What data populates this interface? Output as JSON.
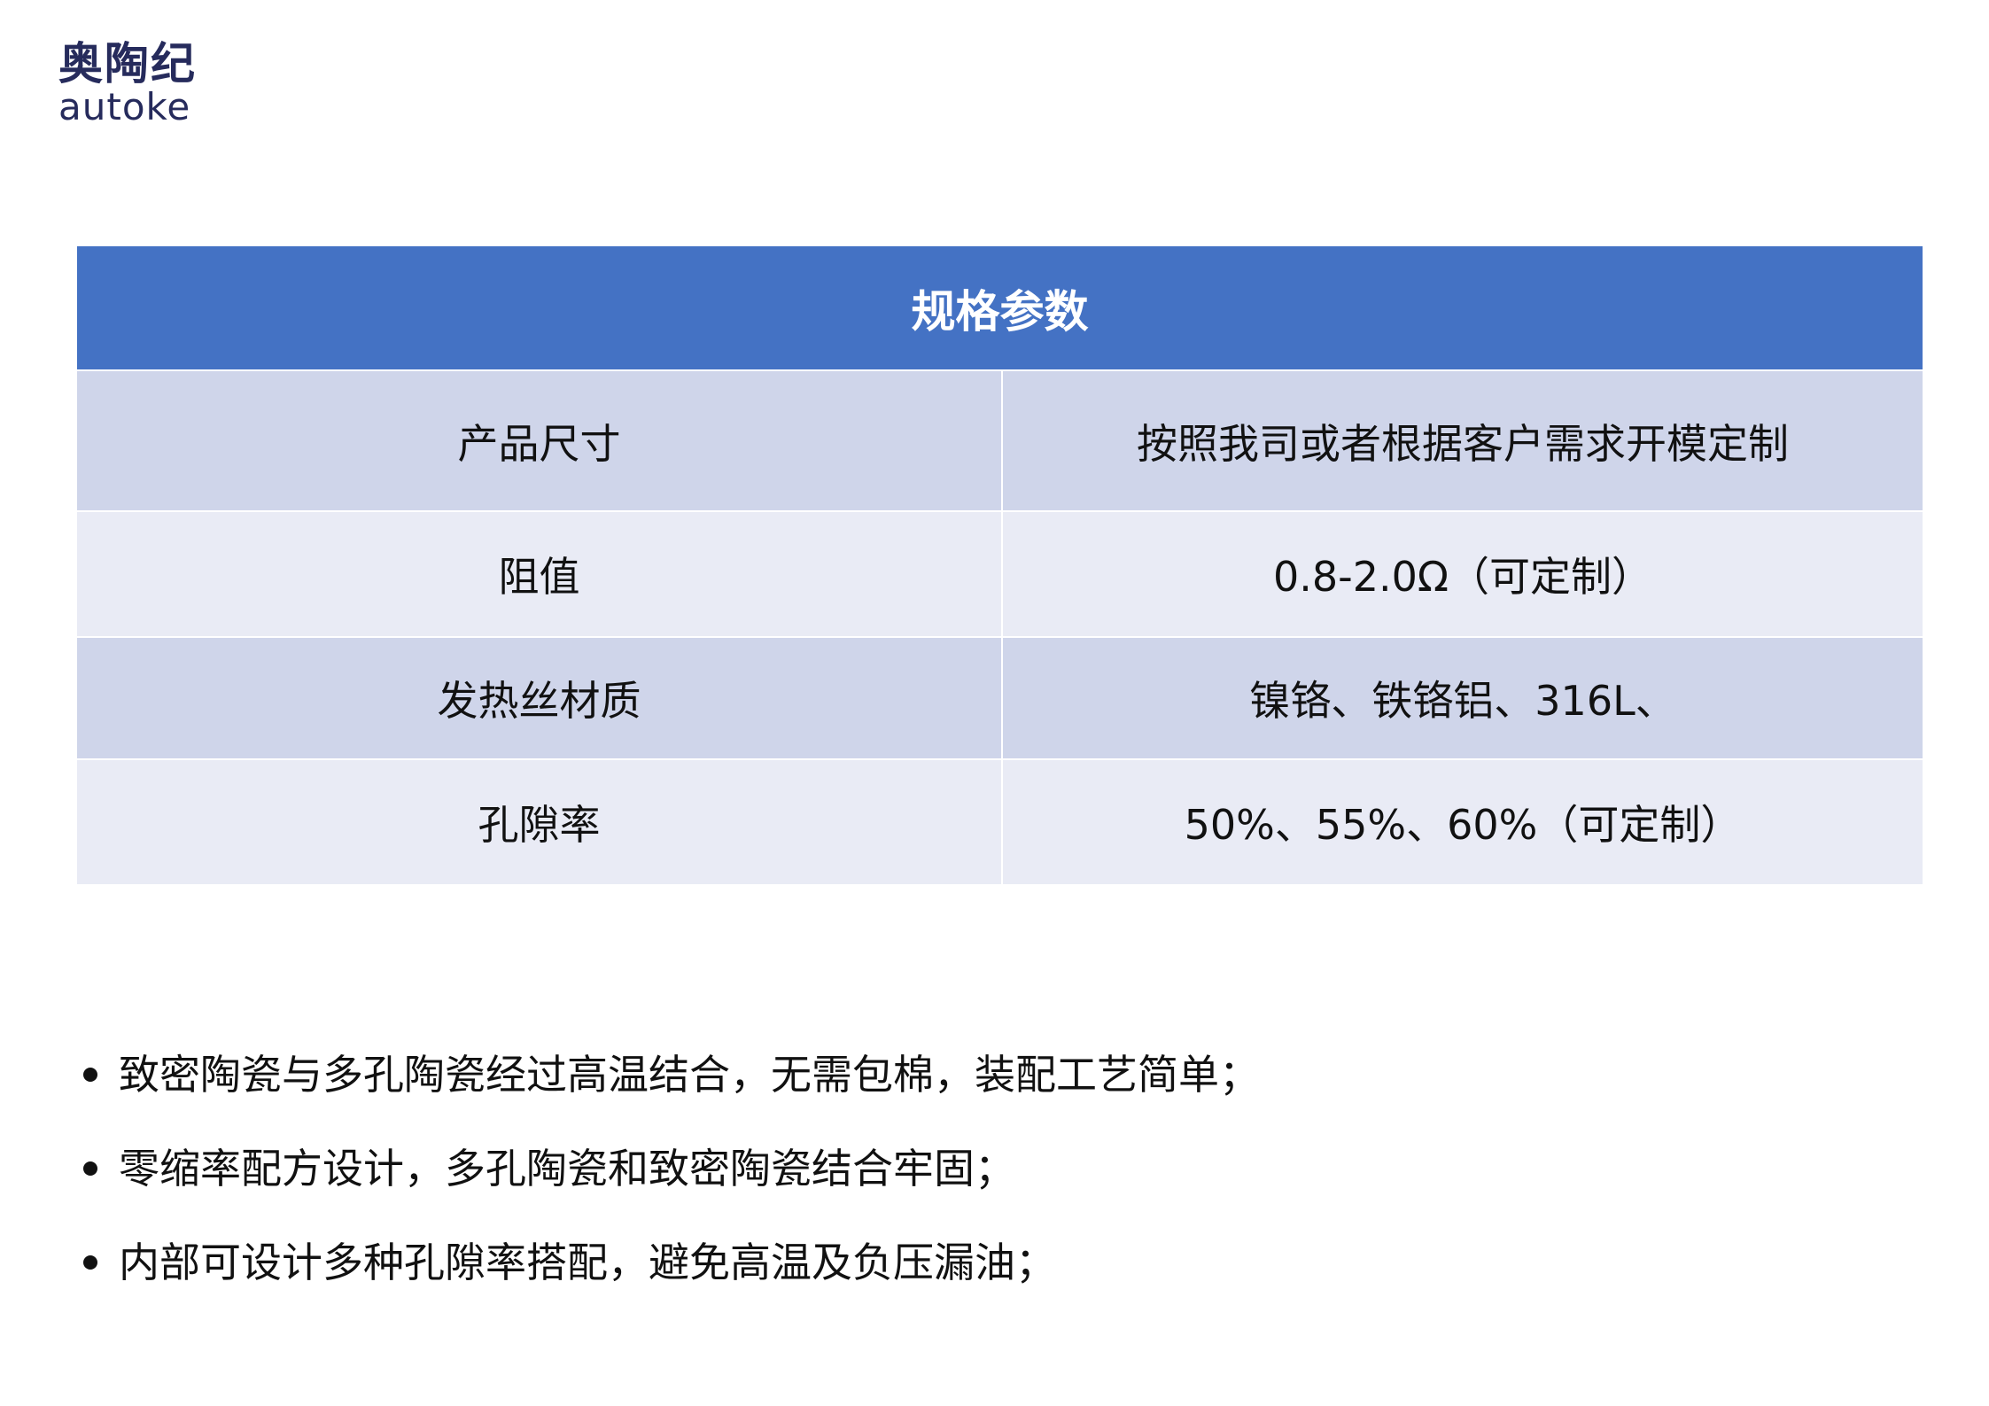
{
  "logo": {
    "cn": "奥陶纪",
    "en": "autoke",
    "color": "#262b5c"
  },
  "table": {
    "title": "规格参数",
    "header_color": "#4472c4",
    "row_colors": [
      "#cfd5ea",
      "#e9ebf5"
    ],
    "rows": [
      {
        "label": "产品尺寸",
        "value": "按照我司或者根据客户需求开模定制"
      },
      {
        "label": "阻值",
        "value": "0.8-2.0Ω（可定制）"
      },
      {
        "label": "发热丝材质",
        "value": "镍铬、铁铬铝、316L、"
      },
      {
        "label": "孔隙率",
        "value": "50%、55%、60%（可定制）"
      }
    ]
  },
  "bullets": [
    "致密陶瓷与多孔陶瓷经过高温结合，无需包棉，装配工艺简单；",
    "零缩率配方设计，多孔陶瓷和致密陶瓷结合牢固；",
    "内部可设计多种孔隙率搭配，避免高温及负压漏油；"
  ]
}
